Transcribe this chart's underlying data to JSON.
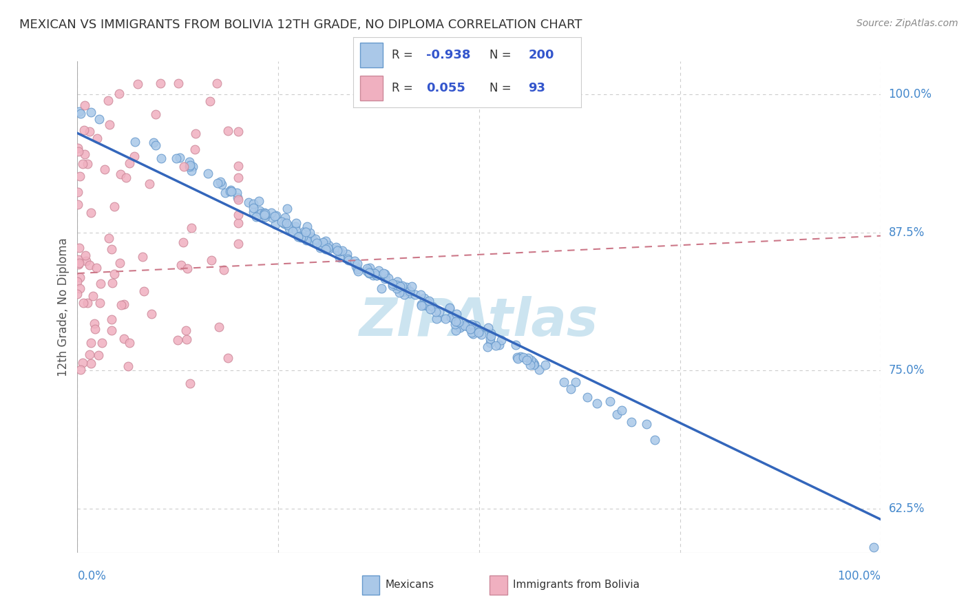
{
  "title": "MEXICAN VS IMMIGRANTS FROM BOLIVIA 12TH GRADE, NO DIPLOMA CORRELATION CHART",
  "source": "Source: ZipAtlas.com",
  "ylabel": "12th Grade, No Diploma",
  "ytick_labels": [
    "100.0%",
    "87.5%",
    "75.0%",
    "62.5%"
  ],
  "ytick_positions": [
    1.0,
    0.875,
    0.75,
    0.625
  ],
  "xtick_labels": [
    "0.0%",
    "100.0%"
  ],
  "xlim": [
    0.0,
    1.0
  ],
  "ylim": [
    0.585,
    1.03
  ],
  "blue_line_start_x": 0.0,
  "blue_line_start_y": 0.965,
  "blue_line_end_x": 1.0,
  "blue_line_end_y": 0.615,
  "pink_line_start_x": 0.0,
  "pink_line_start_y": 0.838,
  "pink_line_end_x": 1.0,
  "pink_line_end_y": 0.872,
  "R_blue": "-0.938",
  "N_blue": "200",
  "R_pink": "0.055",
  "N_pink": "93",
  "background_color": "#ffffff",
  "grid_color": "#cccccc",
  "title_color": "#333333",
  "blue_fill_color": "#aac8e8",
  "blue_edge_color": "#6699cc",
  "pink_fill_color": "#f0b0c0",
  "pink_edge_color": "#cc8899",
  "blue_line_color": "#3366bb",
  "pink_line_color": "#cc7788",
  "right_label_color": "#4488cc",
  "watermark_color": "#cce4f0",
  "legend_text_color": "#333333",
  "legend_value_color": "#3355cc"
}
